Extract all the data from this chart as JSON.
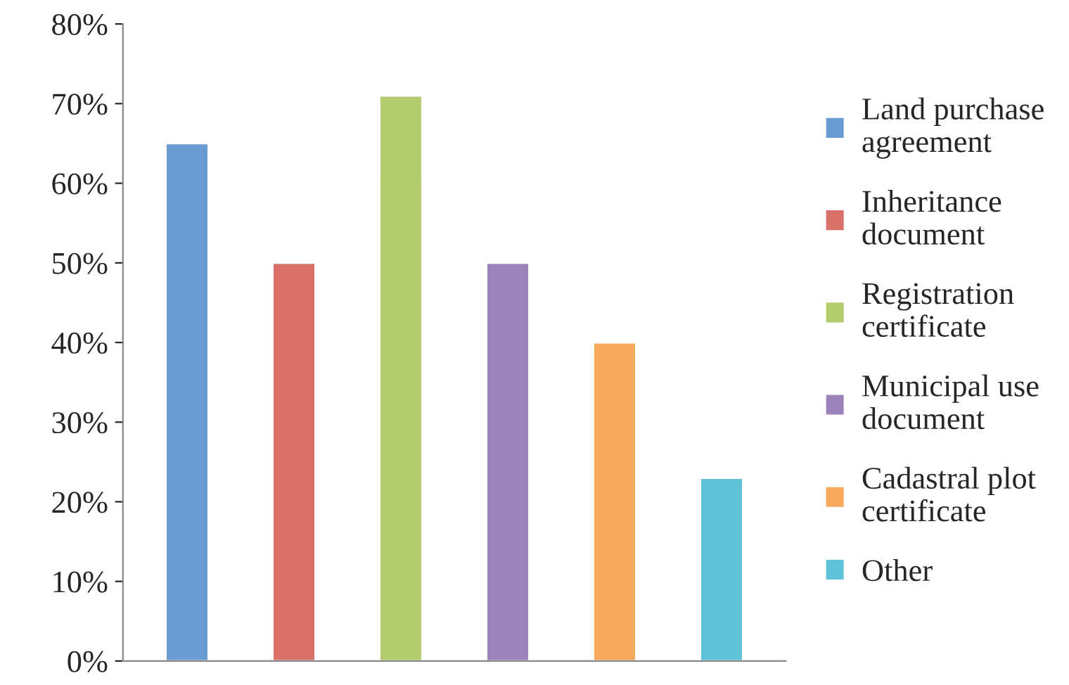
{
  "chart_data": {
    "type": "bar",
    "categories": [
      null,
      null,
      null,
      null,
      null,
      null
    ],
    "series": [
      {
        "name": "Land purchase agreement",
        "color": "#6a9bd3",
        "values": [
          65,
          null,
          null,
          null,
          null,
          null
        ]
      },
      {
        "name": "Inheritance document",
        "color": "#d9706a",
        "values": [
          null,
          50,
          null,
          null,
          null,
          null
        ]
      },
      {
        "name": "Registration certificate",
        "color": "#b3cc6e",
        "values": [
          null,
          null,
          71,
          null,
          null,
          null
        ]
      },
      {
        "name": "Municipal use document",
        "color": "#9c84bb",
        "values": [
          null,
          null,
          null,
          50,
          null,
          null
        ]
      },
      {
        "name": "Cadastral plot certificate",
        "color": "#f9a95c",
        "values": [
          null,
          null,
          null,
          null,
          40,
          null
        ]
      },
      {
        "name": "Other",
        "color": "#5fc2d8",
        "values": [
          null,
          null,
          null,
          null,
          null,
          23
        ]
      }
    ],
    "ylim": [
      0,
      80
    ],
    "yticks": [
      {
        "value": 0,
        "label": "0%"
      },
      {
        "value": 10,
        "label": "10%"
      },
      {
        "value": 20,
        "label": "20%"
      },
      {
        "value": 30,
        "label": "30%"
      },
      {
        "value": 40,
        "label": "40%"
      },
      {
        "value": 50,
        "label": "50%"
      },
      {
        "value": 60,
        "label": "60%"
      },
      {
        "value": 70,
        "label": "70%"
      },
      {
        "value": 80,
        "label": "80%"
      }
    ],
    "grid": false,
    "legend": "right"
  }
}
